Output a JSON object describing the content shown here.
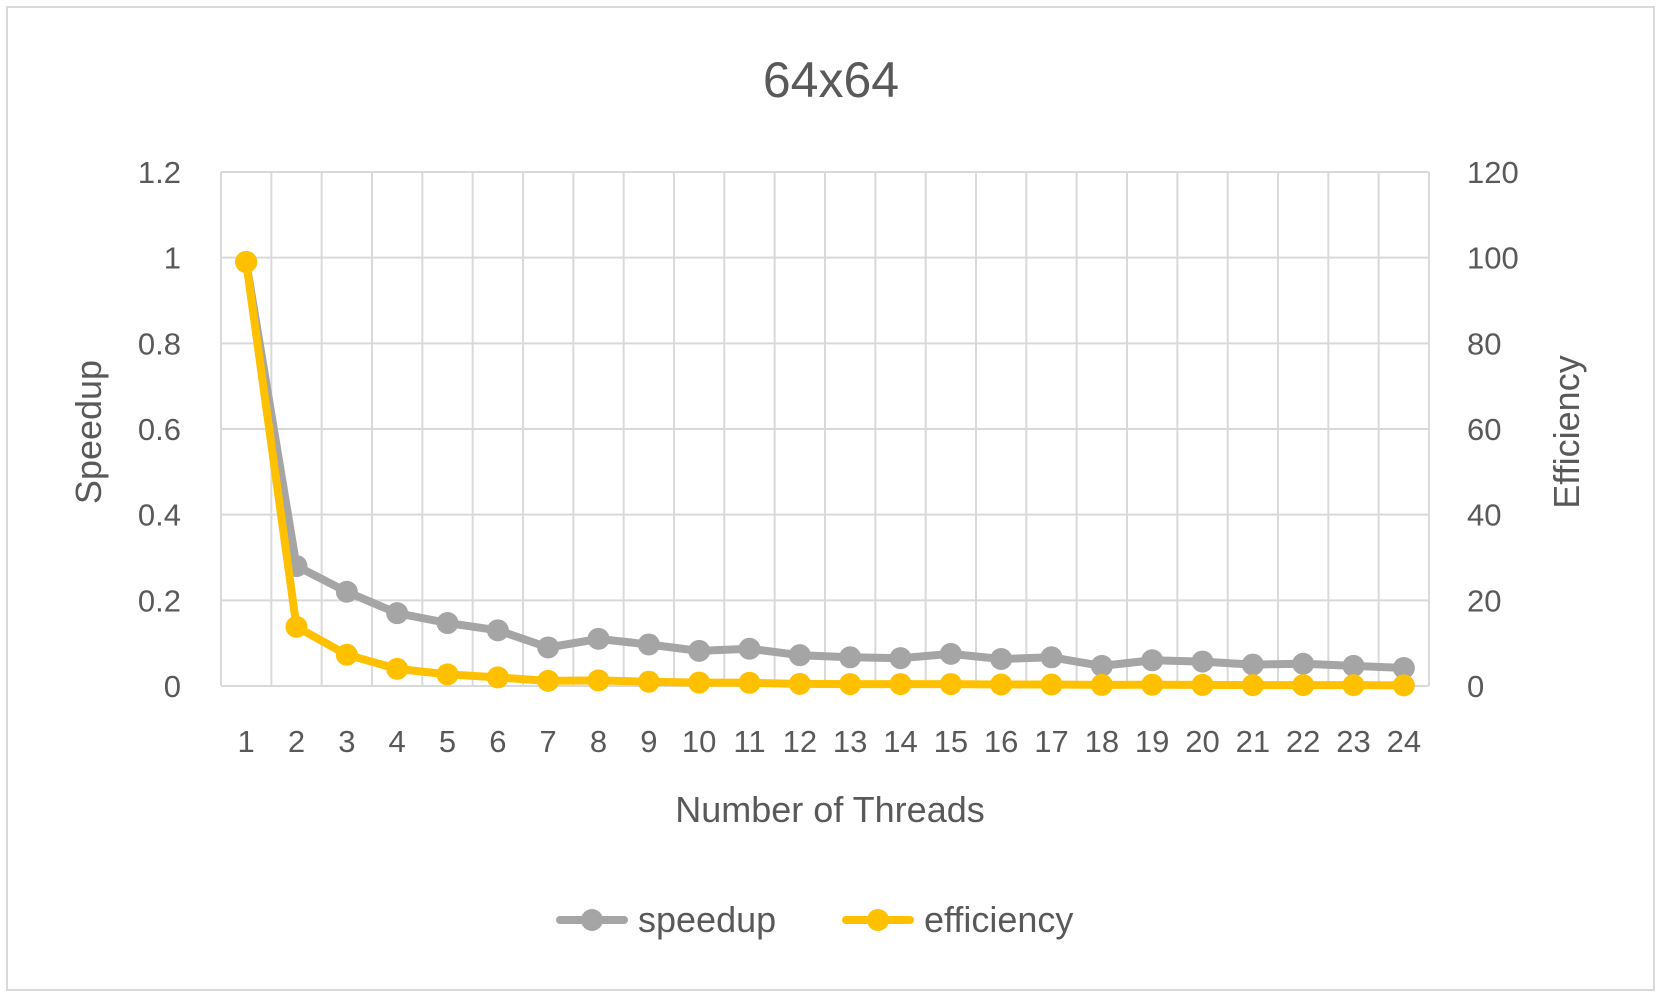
{
  "chart_data": {
    "type": "line",
    "title": "64x64",
    "xlabel": "Number of Threads",
    "ylabel": "Speedup",
    "y2label": "Efficiency",
    "categories": [
      "1",
      "2",
      "3",
      "4",
      "5",
      "6",
      "7",
      "8",
      "9",
      "10",
      "11",
      "12",
      "13",
      "14",
      "15",
      "16",
      "17",
      "18",
      "19",
      "20",
      "21",
      "22",
      "23",
      "24"
    ],
    "ylim": [
      0,
      1.2
    ],
    "y2lim": [
      0,
      120
    ],
    "yticks": [
      "0",
      "0.2",
      "0.4",
      "0.6",
      "0.8",
      "1",
      "1.2"
    ],
    "y2ticks": [
      "0",
      "20",
      "40",
      "60",
      "80",
      "100",
      "120"
    ],
    "grid": true,
    "legend_position": "bottom",
    "series": [
      {
        "name": "speedup",
        "axis": "left",
        "color": "#a5a5a5",
        "values": [
          0.99,
          0.28,
          0.22,
          0.17,
          0.147,
          0.13,
          0.09,
          0.11,
          0.097,
          0.082,
          0.087,
          0.072,
          0.067,
          0.065,
          0.075,
          0.063,
          0.067,
          0.047,
          0.06,
          0.057,
          0.05,
          0.052,
          0.047,
          0.042
        ]
      },
      {
        "name": "efficiency",
        "axis": "right",
        "color": "#ffc000",
        "values": [
          99,
          13.8,
          7.3,
          4.0,
          2.7,
          2.0,
          1.2,
          1.3,
          1.0,
          0.8,
          0.75,
          0.5,
          0.45,
          0.45,
          0.45,
          0.35,
          0.35,
          0.25,
          0.3,
          0.25,
          0.2,
          0.2,
          0.2,
          0.15
        ]
      }
    ]
  }
}
